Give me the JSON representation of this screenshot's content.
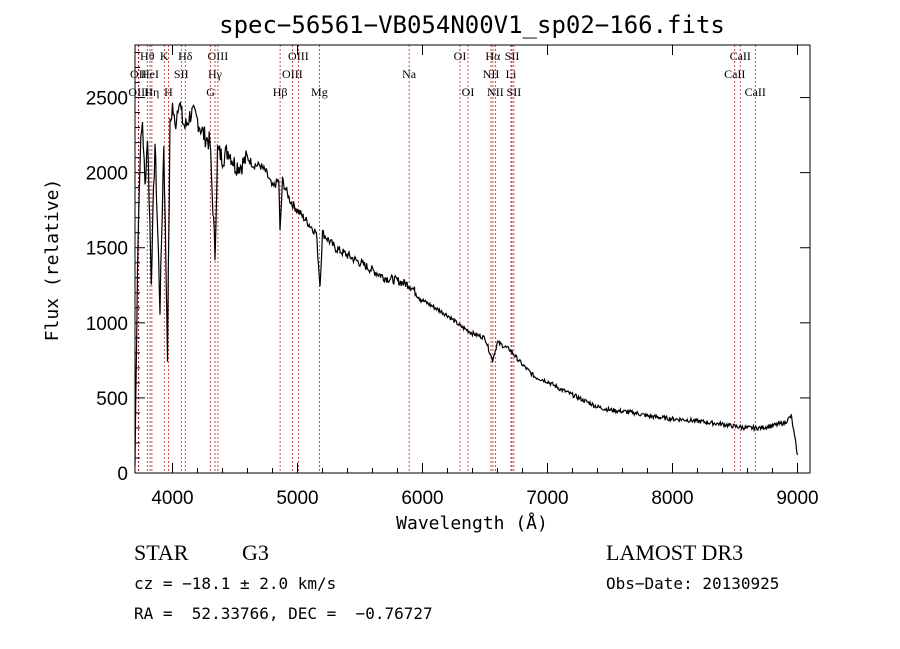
{
  "chart_data": {
    "type": "line",
    "title": "spec−56561−VB054N00V1_sp02−166.fits",
    "xlabel": "Wavelength (Å)",
    "ylabel": "Flux (relative)",
    "xlim": [
      3700,
      9100
    ],
    "ylim": [
      0,
      2850
    ],
    "xticks": [
      4000,
      5000,
      6000,
      7000,
      8000,
      9000
    ],
    "yticks": [
      0,
      500,
      1000,
      1500,
      2000,
      2500
    ],
    "line_color": "#000000",
    "marker_color": "#b22222",
    "x": [
      3700,
      3720,
      3740,
      3760,
      3780,
      3800,
      3830,
      3860,
      3900,
      3930,
      3960,
      3980,
      4000,
      4020,
      4050,
      4080,
      4100,
      4150,
      4200,
      4250,
      4300,
      4340,
      4360,
      4400,
      4450,
      4500,
      4550,
      4600,
      4650,
      4700,
      4750,
      4800,
      4850,
      4860,
      4880,
      4900,
      4950,
      5000,
      5050,
      5100,
      5150,
      5180,
      5200,
      5250,
      5300,
      5400,
      5500,
      5600,
      5700,
      5800,
      5900,
      6000,
      6100,
      6200,
      6300,
      6400,
      6500,
      6560,
      6600,
      6700,
      6800,
      6900,
      7000,
      7100,
      7200,
      7300,
      7400,
      7500,
      7600,
      7700,
      7800,
      7900,
      8000,
      8100,
      8200,
      8300,
      8400,
      8500,
      8600,
      8700,
      8800,
      8900,
      8950,
      9000
    ],
    "y": [
      50,
      1400,
      2100,
      2350,
      1900,
      2250,
      1300,
      2200,
      1100,
      2200,
      800,
      2300,
      2450,
      2300,
      2500,
      2350,
      2300,
      2400,
      2350,
      2250,
      2200,
      1450,
      2150,
      2100,
      2150,
      2050,
      2050,
      2100,
      2050,
      2050,
      2000,
      1900,
      1950,
      1600,
      1950,
      1900,
      1800,
      1750,
      1700,
      1650,
      1600,
      1250,
      1600,
      1550,
      1500,
      1450,
      1400,
      1350,
      1300,
      1280,
      1250,
      1150,
      1100,
      1050,
      980,
      930,
      900,
      750,
      870,
      820,
      720,
      640,
      610,
      560,
      520,
      480,
      440,
      420,
      410,
      400,
      380,
      370,
      360,
      355,
      345,
      335,
      325,
      310,
      300,
      300,
      315,
      335,
      380,
      120
    ],
    "lines": [
      {
        "label": "Hθ",
        "x": 3798,
        "row": 0
      },
      {
        "label": "OII",
        "x": 3727,
        "row": 1
      },
      {
        "label": "OIII",
        "x": 3730,
        "row": 2
      },
      {
        "label": "HeI",
        "x": 3820,
        "row": 1
      },
      {
        "label": "Hη",
        "x": 3835,
        "row": 2
      },
      {
        "label": "K",
        "x": 3934,
        "row": 0
      },
      {
        "label": "SII",
        "x": 4070,
        "row": 1
      },
      {
        "label": "H",
        "x": 3968,
        "row": 2
      },
      {
        "label": "Hδ",
        "x": 4102,
        "row": 0
      },
      {
        "label": "OIII",
        "x": 4363,
        "row": 0
      },
      {
        "label": "Hγ",
        "x": 4340,
        "row": 1
      },
      {
        "label": "G",
        "x": 4305,
        "row": 2
      },
      {
        "label": "Hβ",
        "x": 4861,
        "row": 2
      },
      {
        "label": "OIII",
        "x": 5007,
        "row": 0
      },
      {
        "label": "OIII",
        "x": 4959,
        "row": 1
      },
      {
        "label": "Mg",
        "x": 5175,
        "row": 2
      },
      {
        "label": "Na",
        "x": 5893,
        "row": 1
      },
      {
        "label": "OI",
        "x": 6300,
        "row": 0
      },
      {
        "label": "OI",
        "x": 6364,
        "row": 2
      },
      {
        "label": "Hα",
        "x": 6563,
        "row": 0
      },
      {
        "label": "NII",
        "x": 6548,
        "row": 1
      },
      {
        "label": "NII",
        "x": 6583,
        "row": 2
      },
      {
        "label": "SII",
        "x": 6716,
        "row": 0
      },
      {
        "label": "Li",
        "x": 6708,
        "row": 1
      },
      {
        "label": "SII",
        "x": 6731,
        "row": 2
      },
      {
        "label": "CaII",
        "x": 8542,
        "row": 0
      },
      {
        "label": "CaII",
        "x": 8498,
        "row": 1
      },
      {
        "label": "CaII",
        "x": 8662,
        "row": 2
      }
    ]
  },
  "footer": {
    "class_label": "STAR",
    "subclass": "G3",
    "survey": "LAMOST DR3",
    "cz": "cz = −18.1 ± 2.0 km/s",
    "obs_date": "Obs−Date: 20130925",
    "radec": "RA =  52.33766, DEC =  −0.76727"
  }
}
